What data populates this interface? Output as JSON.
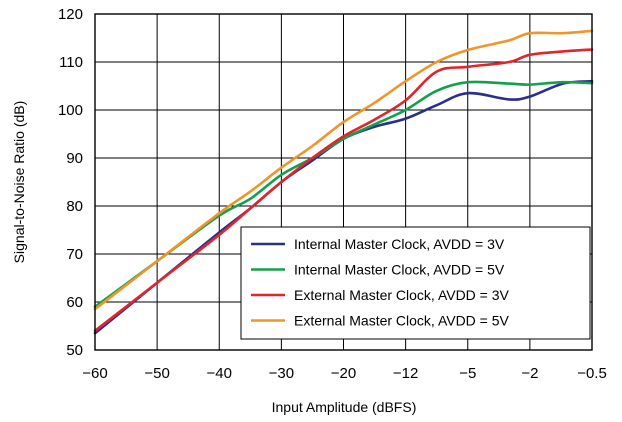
{
  "chart_data": {
    "type": "line",
    "title": "",
    "xlabel": "Input Amplitude (dBFS)",
    "ylabel": "Signal-to-Noise Ratio (dB)",
    "x_ticks": [
      "−60",
      "−50",
      "−40",
      "−30",
      "−20",
      "−12",
      "−5",
      "−2",
      "−0.5"
    ],
    "x_axis_note": "tick labels are evenly spaced (non-linear scale)",
    "ylim": [
      50,
      120
    ],
    "y_ticks": [
      "50",
      "60",
      "70",
      "80",
      "90",
      "100",
      "110",
      "120"
    ],
    "grid": true,
    "legend_position": "bottom-right",
    "series": [
      {
        "name": "Internal Master Clock, AVDD = 3V",
        "color": "#2b2f8c",
        "points": [
          [
            -60,
            53.5
          ],
          [
            -50,
            64
          ],
          [
            -40,
            74.5
          ],
          [
            -35,
            79.5
          ],
          [
            -30,
            85
          ],
          [
            -25,
            89.5
          ],
          [
            -20,
            94
          ],
          [
            -16,
            96.5
          ],
          [
            -12,
            98.2
          ],
          [
            -8.5,
            101
          ],
          [
            -5,
            103.5
          ],
          [
            -3,
            102.2
          ],
          [
            -2,
            102.8
          ],
          [
            -1.2,
            105.5
          ],
          [
            -0.5,
            106
          ]
        ]
      },
      {
        "name": "Internal Master Clock, AVDD = 5V",
        "color": "#13a04a",
        "points": [
          [
            -60,
            59
          ],
          [
            -50,
            68.5
          ],
          [
            -40,
            78
          ],
          [
            -35,
            81.5
          ],
          [
            -30,
            86.5
          ],
          [
            -25,
            90
          ],
          [
            -20,
            94
          ],
          [
            -16,
            97
          ],
          [
            -12,
            100
          ],
          [
            -8.5,
            104
          ],
          [
            -5,
            105.8
          ],
          [
            -3,
            105.5
          ],
          [
            -2,
            105.3
          ],
          [
            -1.2,
            105.8
          ],
          [
            -0.5,
            105.6
          ]
        ]
      },
      {
        "name": "External Master Clock, AVDD = 3V",
        "color": "#e0262b",
        "points": [
          [
            -60,
            54
          ],
          [
            -50,
            64
          ],
          [
            -40,
            74
          ],
          [
            -35,
            79.5
          ],
          [
            -30,
            85
          ],
          [
            -25,
            90
          ],
          [
            -20,
            94.5
          ],
          [
            -16,
            98
          ],
          [
            -12,
            102
          ],
          [
            -8.5,
            108
          ],
          [
            -5,
            109
          ],
          [
            -3,
            110
          ],
          [
            -2,
            111.5
          ],
          [
            -1.2,
            112.2
          ],
          [
            -0.5,
            112.6
          ]
        ]
      },
      {
        "name": "External Master Clock, AVDD = 5V",
        "color": "#f0952a",
        "points": [
          [
            -60,
            58.5
          ],
          [
            -50,
            68.5
          ],
          [
            -40,
            78.5
          ],
          [
            -35,
            83
          ],
          [
            -30,
            88
          ],
          [
            -25,
            92.5
          ],
          [
            -20,
            97.5
          ],
          [
            -16,
            101.5
          ],
          [
            -12,
            106
          ],
          [
            -8.5,
            110
          ],
          [
            -5,
            112.5
          ],
          [
            -3,
            114.5
          ],
          [
            -2,
            116
          ],
          [
            -1.2,
            116
          ],
          [
            -0.5,
            116.5
          ]
        ]
      }
    ]
  }
}
